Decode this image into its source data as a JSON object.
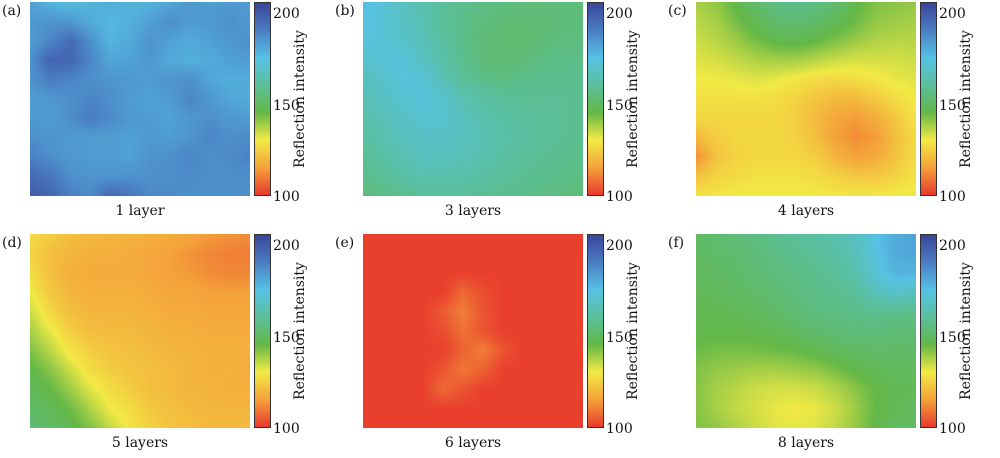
{
  "colorbar": {
    "label": "Reflection intensity",
    "ticks": [
      200,
      150,
      100
    ],
    "min": 100,
    "max": 205,
    "colormap": [
      "#e8392d",
      "#f4a23a",
      "#f2ea45",
      "#64b847",
      "#5abf9a",
      "#56c2e4",
      "#4a7dc2",
      "#3a469a"
    ]
  },
  "chart_data": [
    {
      "type": "heatmap",
      "panel": "(a)",
      "caption": "1 layer",
      "zrange": [
        100,
        205
      ],
      "grid": [
        [
          182,
          178,
          176,
          178,
          180,
          178,
          179,
          181,
          185,
          183,
          184,
          183
        ],
        [
          184,
          185,
          184,
          180,
          177,
          179,
          182,
          186,
          183,
          184,
          186,
          184
        ],
        [
          183,
          188,
          195,
          186,
          178,
          180,
          185,
          182,
          180,
          182,
          184,
          186
        ],
        [
          185,
          197,
          196,
          188,
          181,
          182,
          184,
          180,
          179,
          180,
          182,
          183
        ],
        [
          185,
          190,
          188,
          186,
          185,
          184,
          183,
          185,
          186,
          181,
          179,
          180
        ],
        [
          183,
          184,
          186,
          188,
          186,
          183,
          182,
          183,
          188,
          184,
          181,
          180
        ],
        [
          184,
          183,
          186,
          190,
          187,
          184,
          183,
          182,
          184,
          186,
          184,
          183
        ],
        [
          186,
          185,
          184,
          183,
          183,
          182,
          184,
          183,
          185,
          188,
          186,
          187
        ],
        [
          189,
          186,
          184,
          183,
          183,
          182,
          185,
          186,
          188,
          186,
          187,
          189
        ],
        [
          195,
          192,
          186,
          185,
          185,
          185,
          186,
          186,
          187,
          186,
          186,
          186
        ],
        [
          199,
          196,
          189,
          187,
          195,
          192,
          187,
          187,
          186,
          186,
          186,
          186
        ]
      ]
    },
    {
      "type": "heatmap",
      "panel": "(b)",
      "caption": "3 layers",
      "zrange": [
        100,
        205
      ],
      "grid": [
        [
          176,
          172,
          168,
          164,
          160,
          158,
          156,
          155,
          154,
          154,
          154,
          154
        ],
        [
          175,
          172,
          168,
          165,
          160,
          157,
          155,
          153,
          153,
          153,
          154,
          154
        ],
        [
          173,
          172,
          170,
          166,
          161,
          157,
          154,
          153,
          152,
          154,
          155,
          155
        ],
        [
          170,
          172,
          173,
          168,
          163,
          158,
          154,
          153,
          154,
          156,
          157,
          157
        ],
        [
          167,
          170,
          173,
          172,
          166,
          160,
          157,
          156,
          157,
          158,
          158,
          158
        ],
        [
          165,
          168,
          171,
          173,
          170,
          165,
          162,
          160,
          159,
          159,
          159,
          158
        ],
        [
          163,
          166,
          169,
          171,
          171,
          167,
          164,
          162,
          161,
          160,
          159,
          158
        ],
        [
          161,
          164,
          167,
          169,
          169,
          167,
          165,
          163,
          161,
          160,
          159,
          158
        ],
        [
          159,
          162,
          165,
          167,
          167,
          166,
          164,
          162,
          160,
          159,
          158,
          157
        ],
        [
          157,
          160,
          162,
          164,
          164,
          163,
          162,
          160,
          159,
          158,
          157,
          156
        ],
        [
          154,
          156,
          158,
          160,
          160,
          160,
          159,
          158,
          157,
          156,
          155,
          154
        ]
      ]
    },
    {
      "type": "heatmap",
      "panel": "(c)",
      "caption": "4 layers",
      "zrange": [
        100,
        205
      ],
      "grid": [
        [
          138,
          140,
          146,
          152,
          156,
          157,
          156,
          152,
          146,
          142,
          141,
          140
        ],
        [
          136,
          138,
          143,
          148,
          152,
          153,
          151,
          148,
          144,
          140,
          139,
          138
        ],
        [
          134,
          136,
          139,
          143,
          146,
          147,
          145,
          142,
          139,
          137,
          136,
          136
        ],
        [
          132,
          133,
          135,
          137,
          138,
          138,
          136,
          134,
          133,
          133,
          133,
          134
        ],
        [
          130,
          130,
          131,
          132,
          131,
          129,
          127,
          126,
          127,
          129,
          131,
          132
        ],
        [
          128,
          128,
          128,
          128,
          127,
          125,
          122,
          120,
          120,
          123,
          127,
          130
        ],
        [
          126,
          126,
          126,
          126,
          126,
          124,
          120,
          116,
          114,
          117,
          123,
          128
        ],
        [
          120,
          124,
          126,
          126,
          126,
          125,
          121,
          115,
          112,
          114,
          121,
          127
        ],
        [
          112,
          122,
          125,
          126,
          126,
          126,
          124,
          119,
          115,
          117,
          122,
          127
        ],
        [
          122,
          125,
          127,
          128,
          128,
          128,
          127,
          125,
          123,
          123,
          125,
          128
        ],
        [
          128,
          129,
          130,
          130,
          130,
          130,
          130,
          129,
          129,
          129,
          130,
          131
        ]
      ]
    },
    {
      "type": "heatmap",
      "panel": "(d)",
      "caption": "5 layers",
      "zrange": [
        100,
        205
      ],
      "grid": [
        [
          127,
          124,
          121,
          120,
          119,
          119,
          118,
          117,
          116,
          114,
          113,
          112
        ],
        [
          125,
          121,
          119,
          118,
          118,
          117,
          116,
          115,
          113,
          111,
          110,
          110
        ],
        [
          127,
          121,
          118,
          117,
          117,
          117,
          116,
          115,
          114,
          112,
          111,
          111
        ],
        [
          130,
          123,
          119,
          118,
          118,
          118,
          117,
          116,
          116,
          115,
          115,
          115
        ],
        [
          134,
          126,
          121,
          119,
          119,
          119,
          118,
          117,
          117,
          116,
          116,
          116
        ],
        [
          138,
          131,
          124,
          121,
          120,
          120,
          119,
          118,
          118,
          117,
          117,
          117
        ],
        [
          142,
          136,
          128,
          124,
          122,
          121,
          120,
          119,
          119,
          118,
          118,
          118
        ],
        [
          146,
          141,
          134,
          127,
          124,
          122,
          121,
          120,
          119,
          118,
          118,
          117
        ],
        [
          149,
          145,
          139,
          132,
          127,
          124,
          121,
          120,
          119,
          119,
          118,
          118
        ],
        [
          151,
          148,
          144,
          137,
          130,
          127,
          123,
          121,
          120,
          119,
          119,
          119
        ],
        [
          153,
          150,
          147,
          142,
          135,
          129,
          125,
          122,
          121,
          120,
          120,
          120
        ]
      ]
    },
    {
      "type": "heatmap",
      "panel": "(e)",
      "caption": "6 layers",
      "zrange": [
        100,
        205
      ],
      "grid": [
        [
          101,
          101,
          101,
          101,
          101,
          101,
          101,
          101,
          101,
          101,
          101,
          101
        ],
        [
          101,
          101,
          101,
          101,
          101,
          101,
          101,
          101,
          101,
          101,
          101,
          101
        ],
        [
          101,
          101,
          101,
          101,
          101,
          101,
          101,
          101,
          101,
          101,
          101,
          101
        ],
        [
          101,
          101,
          101,
          101,
          101,
          107,
          103,
          101,
          101,
          101,
          101,
          101
        ],
        [
          101,
          101,
          101,
          101,
          105,
          110,
          104,
          101,
          101,
          101,
          101,
          101
        ],
        [
          101,
          101,
          101,
          101,
          103,
          108,
          104,
          101,
          101,
          101,
          101,
          101
        ],
        [
          101,
          101,
          101,
          101,
          101,
          106,
          110,
          104,
          101,
          101,
          101,
          101
        ],
        [
          101,
          101,
          101,
          101,
          104,
          109,
          106,
          101,
          101,
          101,
          101,
          101
        ],
        [
          101,
          101,
          101,
          101,
          107,
          104,
          101,
          101,
          101,
          101,
          101,
          101
        ],
        [
          101,
          101,
          101,
          101,
          101,
          101,
          101,
          101,
          101,
          101,
          101,
          101
        ],
        [
          101,
          101,
          101,
          101,
          101,
          101,
          101,
          101,
          101,
          101,
          101,
          101
        ]
      ]
    },
    {
      "type": "heatmap",
      "panel": "(f)",
      "caption": "8 layers",
      "zrange": [
        100,
        205
      ],
      "grid": [
        [
          150,
          152,
          154,
          156,
          158,
          160,
          162,
          164,
          168,
          175,
          180,
          182
        ],
        [
          150,
          151,
          152,
          154,
          156,
          158,
          160,
          162,
          166,
          174,
          180,
          181
        ],
        [
          149,
          150,
          151,
          153,
          155,
          156,
          158,
          160,
          164,
          172,
          178,
          178
        ],
        [
          148,
          149,
          150,
          151,
          153,
          155,
          157,
          158,
          160,
          166,
          170,
          168
        ],
        [
          147,
          147,
          148,
          149,
          151,
          153,
          155,
          156,
          157,
          158,
          158,
          157
        ],
        [
          146,
          146,
          146,
          147,
          148,
          150,
          152,
          153,
          154,
          154,
          153,
          153
        ],
        [
          144,
          143,
          143,
          143,
          144,
          145,
          147,
          149,
          150,
          151,
          151,
          151
        ],
        [
          142,
          140,
          139,
          138,
          138,
          139,
          140,
          143,
          146,
          148,
          149,
          149
        ],
        [
          141,
          138,
          136,
          134,
          133,
          133,
          134,
          137,
          141,
          145,
          148,
          148
        ],
        [
          141,
          138,
          135,
          133,
          131,
          130,
          131,
          134,
          139,
          145,
          148,
          149
        ],
        [
          142,
          140,
          137,
          134,
          132,
          131,
          132,
          135,
          140,
          146,
          149,
          150
        ]
      ]
    }
  ]
}
